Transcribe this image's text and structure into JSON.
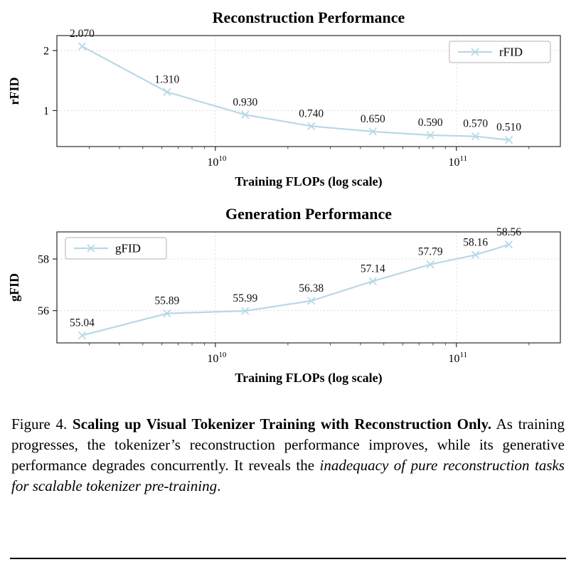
{
  "colors": {
    "series_blue": "#b7d9e7",
    "grid": "#dedede",
    "spine": "#2b2b2b",
    "text": "#000000"
  },
  "chart_data": [
    {
      "type": "line",
      "title": "Reconstruction Performance",
      "xlabel": "Training FLOPs (log scale)",
      "ylabel": "rFID",
      "legend": {
        "label": "rFID",
        "position": "top-right"
      },
      "x": [
        2800000000.0,
        6300000000.0,
        13300000000.0,
        25000000000.0,
        45000000000.0,
        78000000000.0,
        120000000000.0,
        165000000000.0
      ],
      "y": [
        2.07,
        1.31,
        0.93,
        0.74,
        0.65,
        0.59,
        0.57,
        0.51
      ],
      "point_labels": [
        "2.070",
        "1.310",
        "0.930",
        "0.740",
        "0.650",
        "0.590",
        "0.570",
        "0.510"
      ],
      "xlim": [
        2200000000.0,
        270000000000.0
      ],
      "ylim": [
        0.4,
        2.25
      ],
      "xticks": [
        10000000000.0,
        100000000000.0
      ],
      "xtick_labels": [
        "10^10",
        "10^11"
      ],
      "yticks": [
        1,
        2
      ],
      "grid": true,
      "xscale": "log"
    },
    {
      "type": "line",
      "title": "Generation Performance",
      "xlabel": "Training FLOPs (log scale)",
      "ylabel": "gFID",
      "legend": {
        "label": "gFID",
        "position": "top-left"
      },
      "x": [
        2800000000.0,
        6300000000.0,
        13300000000.0,
        25000000000.0,
        45000000000.0,
        78000000000.0,
        120000000000.0,
        165000000000.0
      ],
      "y": [
        55.04,
        55.89,
        55.99,
        56.38,
        57.14,
        57.79,
        58.16,
        58.56
      ],
      "point_labels": [
        "55.04",
        "55.89",
        "55.99",
        "56.38",
        "57.14",
        "57.79",
        "58.16",
        "58.56"
      ],
      "xlim": [
        2200000000.0,
        270000000000.0
      ],
      "ylim": [
        54.75,
        59.05
      ],
      "xticks": [
        10000000000.0,
        100000000000.0
      ],
      "xtick_labels": [
        "10^10",
        "10^11"
      ],
      "yticks": [
        56,
        58
      ],
      "grid": true,
      "xscale": "log"
    }
  ],
  "caption": {
    "segments": [
      {
        "text": "Figure 4. ",
        "style": "normal"
      },
      {
        "text": "Scaling up Visual Tokenizer Training with Reconstruction Only.",
        "style": "bold"
      },
      {
        "text": "  As training progresses, the tokenizer’s reconstruction performance improves, while its generative performance degrades concurrently. It reveals the ",
        "style": "normal"
      },
      {
        "text": "inadequacy of pure reconstruction tasks for scalable tokenizer pre-training",
        "style": "italic"
      },
      {
        "text": ".",
        "style": "normal"
      }
    ]
  }
}
